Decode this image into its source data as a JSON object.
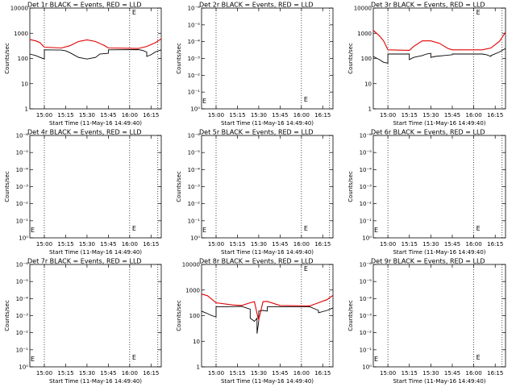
{
  "chart_data": [
    {
      "type": "line",
      "title": "Det 1r  BLACK = Events, RED = LLD",
      "xlabel": "Start Time (11-May-16 14:49:40)",
      "ylabel": "Counts/sec",
      "yscale": "log",
      "ylim": [
        1,
        10000
      ],
      "yticks": [
        "1",
        "10",
        "100",
        "1000",
        "10000"
      ],
      "xlim": [
        14.83,
        16.37
      ],
      "xticks": [
        "15:00",
        "15:15",
        "15:30",
        "15:45",
        "16:00",
        "16:15"
      ],
      "vlines": [
        15.0,
        16.0,
        16.33
      ],
      "marker": "E",
      "series": [
        {
          "color": "#000000",
          "x": [
            14.83,
            14.9,
            14.95,
            15.0,
            15.0,
            15.2,
            15.25,
            15.3,
            15.4,
            15.5,
            15.6,
            15.65,
            15.75,
            15.75,
            16.1,
            16.15,
            16.2,
            16.2,
            16.25,
            16.3,
            16.37
          ],
          "y": [
            150,
            130,
            110,
            95,
            220,
            215,
            200,
            170,
            110,
            95,
            110,
            150,
            160,
            220,
            225,
            210,
            180,
            120,
            140,
            180,
            220
          ]
        },
        {
          "color": "#e00000",
          "x": [
            14.83,
            14.9,
            14.95,
            15.0,
            15.2,
            15.3,
            15.4,
            15.5,
            15.6,
            15.7,
            15.75,
            16.1,
            16.2,
            16.3,
            16.37
          ],
          "y": [
            560,
            500,
            420,
            280,
            260,
            320,
            470,
            550,
            470,
            330,
            260,
            250,
            300,
            420,
            600
          ]
        }
      ]
    },
    {
      "type": "line",
      "title": "Det 2r  BLACK = Events, RED = LLD",
      "xlabel": "Start Time (11-May-16 14:49:40)",
      "ylabel": "Counts/sec",
      "yscale": "log",
      "ylim": [
        1,
        1e-06
      ],
      "yticks": [
        "10⁰",
        "10⁻¹",
        "10⁻²",
        "10⁻³",
        "10⁻⁴",
        "10⁻⁵",
        "10⁻⁶"
      ],
      "xlim": [
        14.83,
        16.37
      ],
      "xticks": [
        "15:00",
        "15:15",
        "15:30",
        "15:45",
        "16:00",
        "16:15"
      ],
      "vlines": [
        15.0,
        16.0,
        16.33
      ],
      "marker": "E",
      "series": []
    },
    {
      "type": "line",
      "title": "Det 3r  BLACK = Events, RED = LLD",
      "xlabel": "Start Time (11-May-16 14:49:40)",
      "ylabel": "Counts/sec",
      "yscale": "log",
      "ylim": [
        1,
        10000
      ],
      "yticks": [
        "1",
        "10",
        "100",
        "1000",
        "10000"
      ],
      "xlim": [
        14.83,
        16.37
      ],
      "xticks": [
        "15:00",
        "15:15",
        "15:30",
        "15:45",
        "16:00",
        "16:15"
      ],
      "vlines": [
        15.0,
        16.0,
        16.33
      ],
      "marker": "E",
      "series": [
        {
          "color": "#000000",
          "x": [
            14.83,
            14.9,
            14.95,
            15.0,
            15.0,
            15.25,
            15.25,
            15.3,
            15.4,
            15.45,
            15.5,
            15.5,
            15.55,
            15.65,
            15.75,
            15.75,
            16.1,
            16.15,
            16.2,
            16.2,
            16.3,
            16.37
          ],
          "y": [
            120,
            90,
            70,
            65,
            150,
            150,
            90,
            110,
            130,
            150,
            160,
            110,
            120,
            130,
            140,
            150,
            150,
            140,
            120,
            130,
            180,
            250
          ]
        },
        {
          "color": "#e00000",
          "x": [
            14.83,
            14.9,
            14.95,
            15.0,
            15.25,
            15.3,
            15.4,
            15.5,
            15.6,
            15.7,
            15.75,
            16.1,
            16.2,
            16.3,
            16.37
          ],
          "y": [
            1300,
            800,
            500,
            220,
            210,
            300,
            500,
            500,
            400,
            250,
            220,
            220,
            260,
            480,
            1100
          ]
        }
      ]
    },
    {
      "type": "line",
      "title": "Det 4r  BLACK = Events, RED = LLD",
      "xlabel": "Start Time (11-May-16 14:49:40)",
      "ylabel": "Counts/sec",
      "yscale": "log",
      "ylim": [
        1,
        1e-06
      ],
      "yticks": [
        "10⁰",
        "10⁻¹",
        "10⁻²",
        "10⁻³",
        "10⁻⁴",
        "10⁻⁵",
        "10⁻⁶"
      ],
      "xlim": [
        14.83,
        16.37
      ],
      "xticks": [
        "15:00",
        "15:15",
        "15:30",
        "15:45",
        "16:00",
        "16:15"
      ],
      "vlines": [
        15.0,
        16.0,
        16.33
      ],
      "marker": "E",
      "series": []
    },
    {
      "type": "line",
      "title": "Det 5r  BLACK = Events, RED = LLD",
      "xlabel": "Start Time (11-May-16 14:49:40)",
      "ylabel": "Counts/sec",
      "yscale": "log",
      "ylim": [
        1,
        1e-06
      ],
      "yticks": [
        "10⁰",
        "10⁻¹",
        "10⁻²",
        "10⁻³",
        "10⁻⁴",
        "10⁻⁵",
        "10⁻⁶"
      ],
      "xlim": [
        14.83,
        16.37
      ],
      "xticks": [
        "15:00",
        "15:15",
        "15:30",
        "15:45",
        "16:00",
        "16:15"
      ],
      "vlines": [
        15.0,
        16.0,
        16.33
      ],
      "marker": "E",
      "series": []
    },
    {
      "type": "line",
      "title": "Det 6r  BLACK = Events, RED = LLD",
      "xlabel": "Start Time (11-May-16 14:49:40)",
      "ylabel": "Counts/sec",
      "yscale": "log",
      "ylim": [
        1,
        1e-06
      ],
      "yticks": [
        "10⁰",
        "10⁻¹",
        "10⁻²",
        "10⁻³",
        "10⁻⁴",
        "10⁻⁵",
        "10⁻⁶"
      ],
      "xlim": [
        14.83,
        16.37
      ],
      "xticks": [
        "15:00",
        "15:15",
        "15:30",
        "15:45",
        "16:00",
        "16:15"
      ],
      "vlines": [
        15.0,
        16.0,
        16.33
      ],
      "marker": "E",
      "series": []
    },
    {
      "type": "line",
      "title": "Det 7r  BLACK = Events, RED = LLD",
      "xlabel": "Start Time (11-May-16 14:49:40)",
      "ylabel": "Counts/sec",
      "yscale": "log",
      "ylim": [
        1,
        1e-06
      ],
      "yticks": [
        "10⁰",
        "10⁻¹",
        "10⁻²",
        "10⁻³",
        "10⁻⁴",
        "10⁻⁵",
        "10⁻⁶"
      ],
      "xlim": [
        14.83,
        16.37
      ],
      "xticks": [
        "15:00",
        "15:15",
        "15:30",
        "15:45",
        "16:00",
        "16:15"
      ],
      "vlines": [
        15.0,
        16.0,
        16.33
      ],
      "marker": "E",
      "series": []
    },
    {
      "type": "line",
      "title": "Det 8r  BLACK = Events, RED = LLD",
      "xlabel": "Start Time (11-May-16 14:49:40)",
      "ylabel": "Counts/sec",
      "yscale": "log",
      "ylim": [
        1,
        10000
      ],
      "yticks": [
        "1",
        "10",
        "100",
        "1000",
        "10000"
      ],
      "xlim": [
        14.83,
        16.37
      ],
      "xticks": [
        "15:00",
        "15:15",
        "15:30",
        "15:45",
        "16:00",
        "16:15"
      ],
      "vlines": [
        15.0,
        16.0,
        16.33
      ],
      "marker": "E",
      "series": [
        {
          "color": "#000000",
          "x": [
            14.83,
            14.9,
            14.95,
            15.0,
            15.0,
            15.2,
            15.3,
            15.4,
            15.4,
            15.45,
            15.48,
            15.48,
            15.5,
            15.5,
            15.55,
            15.6,
            15.6,
            15.75,
            16.1,
            16.2,
            16.2,
            16.3,
            16.37
          ],
          "y": [
            150,
            120,
            100,
            90,
            220,
            225,
            230,
            180,
            80,
            60,
            80,
            20,
            60,
            150,
            160,
            150,
            220,
            220,
            220,
            160,
            130,
            160,
            200
          ]
        },
        {
          "color": "#e00000",
          "x": [
            14.83,
            14.9,
            15.0,
            15.2,
            15.3,
            15.4,
            15.45,
            15.48,
            15.5,
            15.55,
            15.6,
            15.75,
            16.1,
            16.2,
            16.3,
            16.37
          ],
          "y": [
            700,
            600,
            320,
            260,
            250,
            320,
            350,
            120,
            70,
            350,
            360,
            250,
            240,
            320,
            420,
            620
          ]
        }
      ]
    },
    {
      "type": "line",
      "title": "Det 9r  BLACK = Events, RED = LLD",
      "xlabel": "Start Time (11-May-16 14:49:40)",
      "ylabel": "Counts/sec",
      "yscale": "log",
      "ylim": [
        1,
        1e-06
      ],
      "yticks": [
        "10⁰",
        "10⁻¹",
        "10⁻²",
        "10⁻³",
        "10⁻⁴",
        "10⁻⁵",
        "10⁻⁶"
      ],
      "xlim": [
        14.83,
        16.37
      ],
      "xticks": [
        "15:00",
        "15:15",
        "15:30",
        "15:45",
        "16:00",
        "16:15"
      ],
      "vlines": [
        15.0,
        16.0,
        16.33
      ],
      "marker": "E",
      "series": []
    }
  ]
}
